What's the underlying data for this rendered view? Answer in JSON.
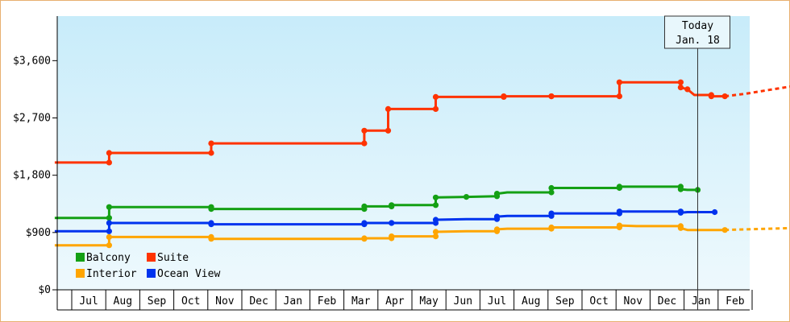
{
  "chart_data": {
    "type": "line",
    "title": "",
    "xlabel": "",
    "ylabel": "",
    "ylim": [
      0,
      4300
    ],
    "y_ticks": [
      0,
      900,
      1800,
      2700,
      3600
    ],
    "y_tick_labels": [
      "$0",
      "$900",
      "$1,800",
      "$2,700",
      "$3,600"
    ],
    "x_ticks": [
      "Jul",
      "Aug",
      "Sep",
      "Oct",
      "Nov",
      "Dec",
      "Jan",
      "Feb",
      "Mar",
      "Apr",
      "May",
      "Jun",
      "Jul",
      "Aug",
      "Sep",
      "Oct",
      "Nov",
      "Dec",
      "Jan",
      "Feb"
    ],
    "grid": false,
    "legend_position": "bottom-left",
    "today_annotation": {
      "line1": "Today",
      "line2": "Jan. 18",
      "x": 18.4
    },
    "series": [
      {
        "name": "Balcony",
        "color": "#14a014",
        "points": [
          [
            -0.5,
            1130
          ],
          [
            1.1,
            1130
          ],
          [
            1.1,
            1300
          ],
          [
            4.1,
            1300
          ],
          [
            4.1,
            1270
          ],
          [
            8.6,
            1270
          ],
          [
            8.6,
            1310
          ],
          [
            9.4,
            1310
          ],
          [
            9.4,
            1330
          ],
          [
            10.7,
            1330
          ],
          [
            10.7,
            1450
          ],
          [
            11.6,
            1460
          ],
          [
            12.5,
            1470
          ],
          [
            12.5,
            1510
          ],
          [
            12.8,
            1530
          ],
          [
            14.1,
            1530
          ],
          [
            14.1,
            1600
          ],
          [
            16.1,
            1600
          ],
          [
            16.1,
            1620
          ],
          [
            17.9,
            1620
          ],
          [
            17.9,
            1580
          ],
          [
            18.1,
            1570
          ],
          [
            18.4,
            1570
          ]
        ],
        "step": true
      },
      {
        "name": "Suite",
        "color": "#ff3300",
        "points": [
          [
            -0.5,
            2000
          ],
          [
            1.1,
            2000
          ],
          [
            1.1,
            2150
          ],
          [
            4.1,
            2150
          ],
          [
            4.1,
            2300
          ],
          [
            8.6,
            2300
          ],
          [
            8.6,
            2500
          ],
          [
            9.3,
            2500
          ],
          [
            9.3,
            2840
          ],
          [
            10.7,
            2840
          ],
          [
            10.7,
            3030
          ],
          [
            12.7,
            3030
          ],
          [
            12.7,
            3040
          ],
          [
            14.1,
            3040
          ],
          [
            14.1,
            3040
          ],
          [
            16.1,
            3040
          ],
          [
            16.1,
            3260
          ],
          [
            17.9,
            3260
          ],
          [
            17.9,
            3180
          ],
          [
            18.1,
            3150
          ],
          [
            18.3,
            3060
          ],
          [
            18.8,
            3060
          ],
          [
            18.8,
            3040
          ],
          [
            19.2,
            3040
          ]
        ],
        "step": true,
        "projection": [
          [
            19.2,
            3040
          ],
          [
            19.8,
            3080
          ],
          [
            20.5,
            3140
          ],
          [
            21.2,
            3200
          ]
        ]
      },
      {
        "name": "Interior",
        "color": "#ffa500",
        "points": [
          [
            -0.5,
            700
          ],
          [
            1.1,
            700
          ],
          [
            1.1,
            830
          ],
          [
            4.1,
            830
          ],
          [
            4.1,
            800
          ],
          [
            8.6,
            800
          ],
          [
            8.6,
            810
          ],
          [
            9.4,
            810
          ],
          [
            9.4,
            840
          ],
          [
            10.7,
            840
          ],
          [
            10.7,
            910
          ],
          [
            11.6,
            920
          ],
          [
            12.5,
            920
          ],
          [
            12.5,
            950
          ],
          [
            12.8,
            960
          ],
          [
            14.1,
            960
          ],
          [
            14.1,
            980
          ],
          [
            16.1,
            980
          ],
          [
            16.1,
            1010
          ],
          [
            16.6,
            1000
          ],
          [
            17.9,
            1000
          ],
          [
            17.9,
            970
          ],
          [
            18.1,
            940
          ],
          [
            18.8,
            940
          ],
          [
            19.2,
            940
          ]
        ],
        "step": true,
        "projection": [
          [
            19.2,
            940
          ],
          [
            19.8,
            950
          ],
          [
            20.5,
            960
          ],
          [
            21.2,
            970
          ]
        ]
      },
      {
        "name": "Ocean View",
        "color": "#0033ee",
        "points": [
          [
            -0.5,
            920
          ],
          [
            1.1,
            920
          ],
          [
            1.1,
            1050
          ],
          [
            4.1,
            1050
          ],
          [
            4.1,
            1030
          ],
          [
            8.6,
            1030
          ],
          [
            8.6,
            1050
          ],
          [
            9.4,
            1050
          ],
          [
            9.4,
            1050
          ],
          [
            10.7,
            1050
          ],
          [
            10.7,
            1100
          ],
          [
            11.6,
            1110
          ],
          [
            12.5,
            1110
          ],
          [
            12.5,
            1150
          ],
          [
            12.8,
            1160
          ],
          [
            14.1,
            1160
          ],
          [
            14.1,
            1200
          ],
          [
            16.1,
            1200
          ],
          [
            16.1,
            1230
          ],
          [
            17.9,
            1230
          ],
          [
            17.9,
            1210
          ],
          [
            18.1,
            1220
          ],
          [
            18.9,
            1220
          ]
        ],
        "step": true
      }
    ]
  }
}
